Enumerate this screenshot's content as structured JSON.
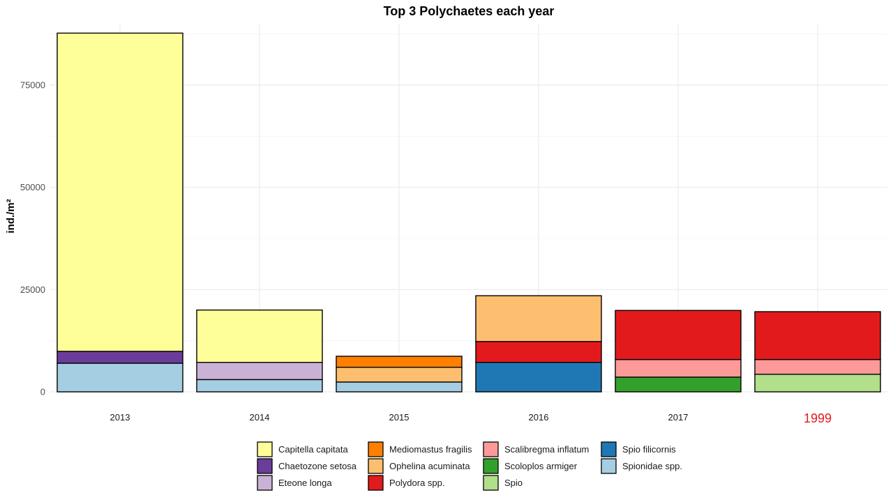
{
  "chart_data": {
    "type": "bar",
    "stacked": true,
    "title": "Top 3 Polychaetes each year",
    "xlabel": "",
    "ylabel": "ind./m²",
    "ylim": [
      0,
      90000
    ],
    "yticks": [
      0,
      25000,
      50000,
      75000
    ],
    "ytick_labels": [
      "0",
      "25000",
      "50000",
      "75000"
    ],
    "categories": [
      "2013",
      "2014",
      "2015",
      "2016",
      "2017",
      "1999"
    ],
    "highlighted_category": {
      "index": 5,
      "color": "#e41a1c"
    },
    "grid": true,
    "legend_position": "bottom",
    "legend": [
      {
        "name": "Capitella capitata",
        "color": "#ffff99"
      },
      {
        "name": "Chaetozone setosa",
        "color": "#6a3d9a"
      },
      {
        "name": "Eteone longa",
        "color": "#cab2d6"
      },
      {
        "name": "Mediomastus fragilis",
        "color": "#ff7f00"
      },
      {
        "name": "Ophelina acuminata",
        "color": "#fdbf6f"
      },
      {
        "name": "Polydora spp.",
        "color": "#e31a1c"
      },
      {
        "name": "Scalibregma inflatum",
        "color": "#fb9a99"
      },
      {
        "name": "Scoloplos armiger",
        "color": "#33a02c"
      },
      {
        "name": "Spio",
        "color": "#b2df8a"
      },
      {
        "name": "Spio filicornis",
        "color": "#1f78b4"
      },
      {
        "name": "Spionidae spp.",
        "color": "#a6cee3"
      }
    ],
    "stacks": [
      {
        "category": "2013",
        "segments": [
          {
            "name": "Spionidae spp.",
            "value": 7000
          },
          {
            "name": "Chaetozone setosa",
            "value": 2900
          },
          {
            "name": "Capitella capitata",
            "value": 77800
          }
        ]
      },
      {
        "category": "2014",
        "segments": [
          {
            "name": "Spionidae spp.",
            "value": 3000
          },
          {
            "name": "Eteone longa",
            "value": 4200
          },
          {
            "name": "Capitella capitata",
            "value": 12800
          }
        ]
      },
      {
        "category": "2015",
        "segments": [
          {
            "name": "Spionidae spp.",
            "value": 2400
          },
          {
            "name": "Ophelina acuminata",
            "value": 3600
          },
          {
            "name": "Mediomastus fragilis",
            "value": 2700
          }
        ]
      },
      {
        "category": "2016",
        "segments": [
          {
            "name": "Spio filicornis",
            "value": 7200
          },
          {
            "name": "Polydora spp.",
            "value": 5100
          },
          {
            "name": "Ophelina acuminata",
            "value": 11200
          }
        ]
      },
      {
        "category": "2017",
        "segments": [
          {
            "name": "Scoloplos armiger",
            "value": 3600
          },
          {
            "name": "Scalibregma inflatum",
            "value": 4300
          },
          {
            "name": "Polydora spp.",
            "value": 12000
          }
        ]
      },
      {
        "category": "1999",
        "segments": [
          {
            "name": "Spio",
            "value": 4300
          },
          {
            "name": "Scalibregma inflatum",
            "value": 3600
          },
          {
            "name": "Polydora spp.",
            "value": 11700
          }
        ]
      }
    ]
  }
}
